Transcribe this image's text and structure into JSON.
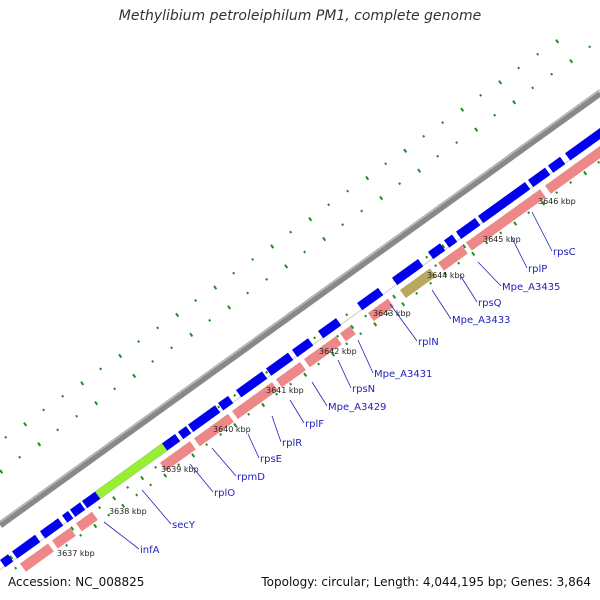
{
  "title": "Methylibium petroleiphilum PM1, complete genome",
  "footer": {
    "accession": "Accession: NC_008825",
    "summary": "Topology: circular; Length: 4,044,195 bp; Genes: 3,864"
  },
  "colors": {
    "backbone": "#777777",
    "forward_cds": "#0000ee",
    "reverse_cds": "#ee8888",
    "highlight_green": "#99ee33",
    "highlight_olive": "#b8a860",
    "gc_dots": "#228b22",
    "label_text": "#2222bb"
  },
  "kbp_ticks": [
    "3637 kbp",
    "3638 kbp",
    "3639 kbp",
    "3640 kbp",
    "3641 kbp",
    "3642 kbp",
    "3643 kbp",
    "3644 kbp",
    "3645 kbp",
    "3646 kbp"
  ],
  "gene_labels": [
    "infA",
    "secY",
    "rplO",
    "rpmD",
    "rpsE",
    "rplR",
    "rplF",
    "Mpe_A3429",
    "rpsN",
    "Mpe_A3431",
    "rplN",
    "Mpe_A3433",
    "rpsQ",
    "Mpe_A3435",
    "rplP",
    "rpsC"
  ]
}
